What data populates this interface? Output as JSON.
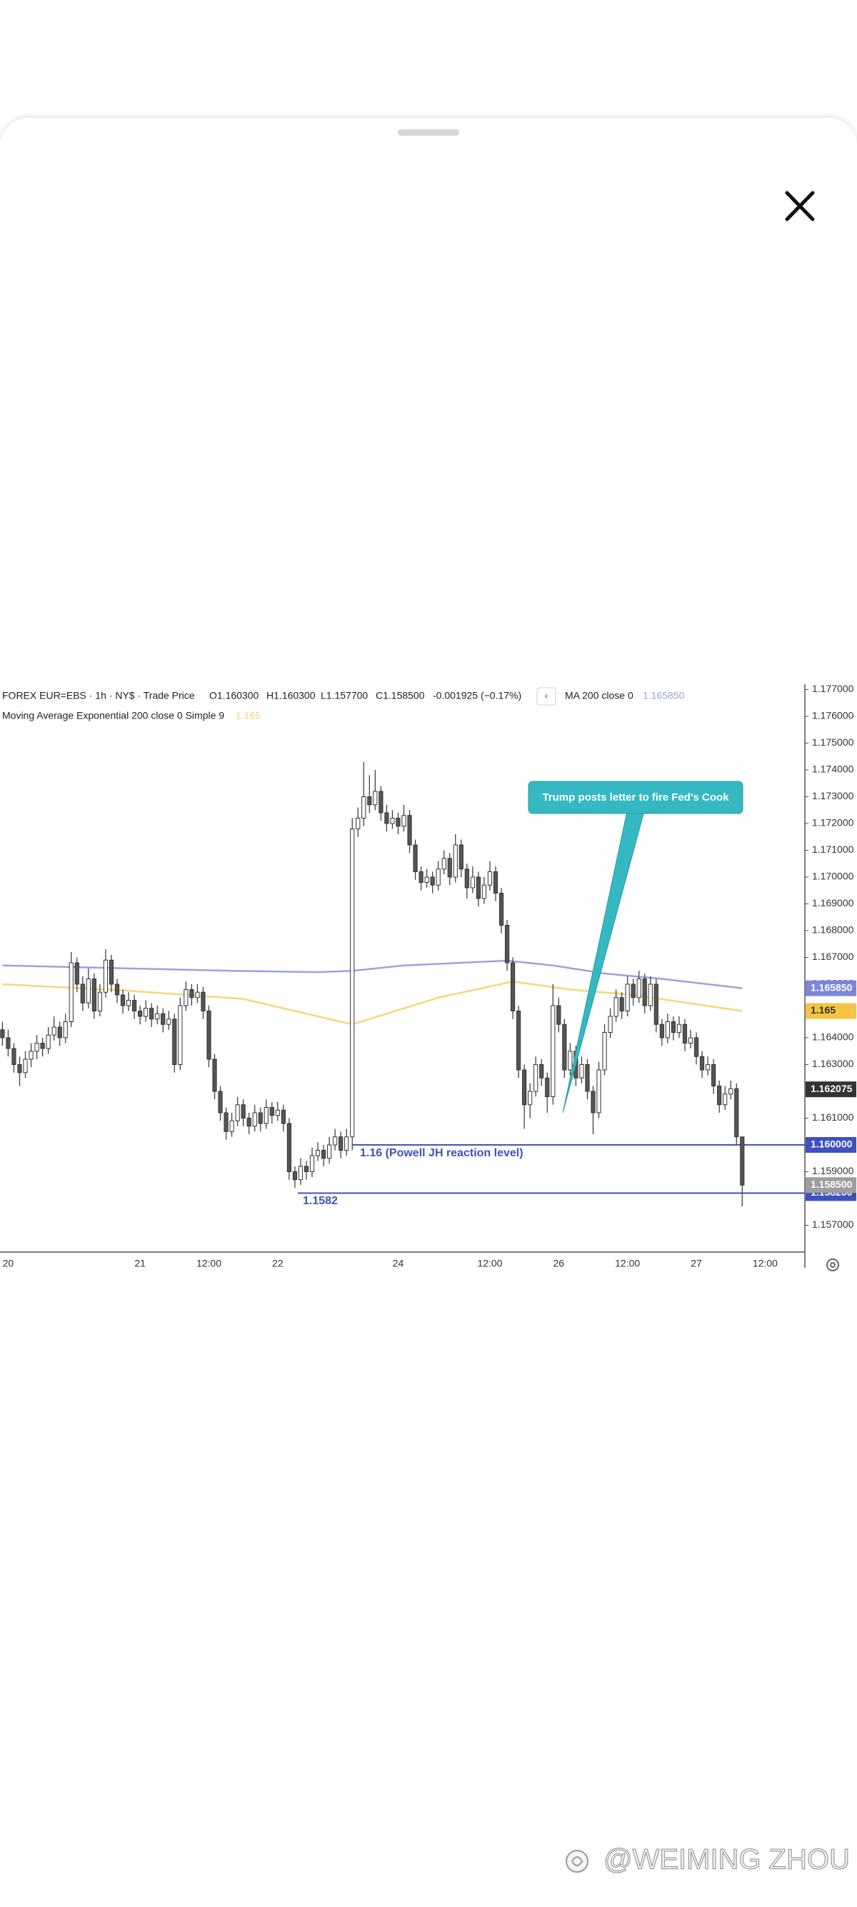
{
  "chart_data": {
    "type": "candlestick",
    "title": "FOREX EUR=EBS · 1h · NY$ · Trade Price",
    "ohlc_legend": [
      "O1.160300",
      "H1.160300",
      "L1.157700",
      "C1.158500",
      "-0.001925 (−0.17%)"
    ],
    "categories": [
      null,
      "20",
      null,
      null,
      null,
      null,
      null,
      null,
      null,
      null,
      null,
      null,
      null,
      null,
      null,
      null,
      null,
      null,
      null,
      null,
      null,
      null,
      null,
      null,
      "21",
      null,
      null,
      null,
      null,
      null,
      null,
      null,
      null,
      null,
      null,
      null,
      "12:00",
      null,
      null,
      null,
      null,
      null,
      null,
      null,
      null,
      null,
      null,
      null,
      "22",
      null,
      null,
      null,
      null,
      null,
      null,
      null,
      null,
      null,
      null,
      null,
      null,
      null,
      null,
      null,
      null,
      null,
      null,
      null,
      null,
      "24",
      null,
      null,
      null,
      null,
      null,
      null,
      null,
      null,
      null,
      null,
      null,
      null,
      null,
      null,
      null,
      "12:00",
      null,
      null,
      null,
      null,
      null,
      null,
      null,
      null,
      null,
      null,
      null,
      "26",
      null,
      null,
      null,
      null,
      null,
      null,
      null,
      null,
      null,
      null,
      null,
      "12:00",
      null,
      null,
      null,
      null,
      null,
      null,
      null,
      null,
      null,
      null,
      null,
      "27",
      null,
      null,
      null,
      null,
      null,
      null,
      null,
      null,
      null,
      null,
      null,
      "12:00",
      null
    ],
    "candles": [
      [
        1.1643,
        1.1646,
        1.1637,
        1.164
      ],
      [
        1.164,
        1.1643,
        1.1633,
        1.1636
      ],
      [
        1.1636,
        1.1638,
        1.1627,
        1.163
      ],
      [
        1.163,
        1.1633,
        1.1622,
        1.1627
      ],
      [
        1.1627,
        1.1635,
        1.1625,
        1.1632
      ],
      [
        1.1632,
        1.1638,
        1.1629,
        1.1635
      ],
      [
        1.1635,
        1.1641,
        1.1632,
        1.1638
      ],
      [
        1.1638,
        1.164,
        1.1633,
        1.1636
      ],
      [
        1.1636,
        1.1644,
        1.1634,
        1.1641
      ],
      [
        1.1641,
        1.1648,
        1.1639,
        1.1644
      ],
      [
        1.1644,
        1.1646,
        1.1637,
        1.164
      ],
      [
        1.164,
        1.1649,
        1.1638,
        1.1646
      ],
      [
        1.1646,
        1.1672,
        1.1644,
        1.1668
      ],
      [
        1.1668,
        1.167,
        1.1657,
        1.166
      ],
      [
        1.166,
        1.1663,
        1.165,
        1.1653
      ],
      [
        1.1653,
        1.1666,
        1.1651,
        1.1662
      ],
      [
        1.1662,
        1.1664,
        1.1647,
        1.165
      ],
      [
        1.165,
        1.166,
        1.1648,
        1.1657
      ],
      [
        1.1657,
        1.1673,
        1.1655,
        1.1669
      ],
      [
        1.1669,
        1.1671,
        1.1657,
        1.166
      ],
      [
        1.166,
        1.1662,
        1.1653,
        1.1656
      ],
      [
        1.1656,
        1.1658,
        1.1649,
        1.1652
      ],
      [
        1.1652,
        1.1657,
        1.165,
        1.1654
      ],
      [
        1.1654,
        1.1656,
        1.1647,
        1.165
      ],
      [
        1.165,
        1.1652,
        1.1645,
        1.1648
      ],
      [
        1.1648,
        1.1654,
        1.1646,
        1.1651
      ],
      [
        1.1651,
        1.1653,
        1.1644,
        1.1647
      ],
      [
        1.1647,
        1.1652,
        1.1645,
        1.1649
      ],
      [
        1.1649,
        1.1651,
        1.1642,
        1.1645
      ],
      [
        1.1645,
        1.165,
        1.1643,
        1.1647
      ],
      [
        1.1647,
        1.1649,
        1.1627,
        1.163
      ],
      [
        1.163,
        1.1655,
        1.1628,
        1.1652
      ],
      [
        1.1652,
        1.1661,
        1.165,
        1.1658
      ],
      [
        1.1658,
        1.166,
        1.1652,
        1.1655
      ],
      [
        1.1655,
        1.166,
        1.1653,
        1.1657
      ],
      [
        1.1657,
        1.1659,
        1.1647,
        1.165
      ],
      [
        1.165,
        1.1652,
        1.1629,
        1.1632
      ],
      [
        1.1632,
        1.1634,
        1.1617,
        1.162
      ],
      [
        1.162,
        1.1622,
        1.1609,
        1.1612
      ],
      [
        1.1612,
        1.1614,
        1.1602,
        1.1605
      ],
      [
        1.1605,
        1.1612,
        1.1603,
        1.1609
      ],
      [
        1.1609,
        1.1618,
        1.1607,
        1.1615
      ],
      [
        1.1615,
        1.1617,
        1.1607,
        1.161
      ],
      [
        1.161,
        1.1612,
        1.1604,
        1.1607
      ],
      [
        1.1607,
        1.1615,
        1.1605,
        1.1612
      ],
      [
        1.1612,
        1.1614,
        1.1605,
        1.1608
      ],
      [
        1.1608,
        1.1617,
        1.1606,
        1.1614
      ],
      [
        1.1614,
        1.1616,
        1.1608,
        1.1611
      ],
      [
        1.1611,
        1.1616,
        1.1609,
        1.1613
      ],
      [
        1.1613,
        1.1615,
        1.1605,
        1.1608
      ],
      [
        1.1608,
        1.161,
        1.1587,
        1.159
      ],
      [
        1.159,
        1.1592,
        1.1584,
        1.1587
      ],
      [
        1.1587,
        1.1595,
        1.1585,
        1.1592
      ],
      [
        1.1592,
        1.1594,
        1.1587,
        1.159
      ],
      [
        1.159,
        1.1599,
        1.1588,
        1.1596
      ],
      [
        1.1596,
        1.1601,
        1.1594,
        1.1598
      ],
      [
        1.1598,
        1.16,
        1.1592,
        1.1595
      ],
      [
        1.1595,
        1.1603,
        1.1593,
        1.16
      ],
      [
        1.16,
        1.1606,
        1.1598,
        1.1603
      ],
      [
        1.1603,
        1.1605,
        1.1595,
        1.1598
      ],
      [
        1.1598,
        1.1606,
        1.1596,
        1.1603
      ],
      [
        1.1603,
        1.1722,
        1.1598,
        1.1718
      ],
      [
        1.1718,
        1.1726,
        1.1715,
        1.1722
      ],
      [
        1.1722,
        1.1743,
        1.1719,
        1.173
      ],
      [
        1.173,
        1.1738,
        1.1724,
        1.1727
      ],
      [
        1.1727,
        1.174,
        1.1725,
        1.1732
      ],
      [
        1.1732,
        1.1734,
        1.1721,
        1.1724
      ],
      [
        1.1724,
        1.1727,
        1.1717,
        1.172
      ],
      [
        1.172,
        1.1725,
        1.1718,
        1.1722
      ],
      [
        1.1722,
        1.1724,
        1.1716,
        1.1719
      ],
      [
        1.1719,
        1.1727,
        1.1717,
        1.1723
      ],
      [
        1.1723,
        1.1725,
        1.1709,
        1.1712
      ],
      [
        1.1712,
        1.1714,
        1.1699,
        1.1702
      ],
      [
        1.1702,
        1.1704,
        1.1695,
        1.1698
      ],
      [
        1.1698,
        1.1703,
        1.1696,
        1.17
      ],
      [
        1.17,
        1.1702,
        1.1694,
        1.1697
      ],
      [
        1.1697,
        1.1706,
        1.1695,
        1.1703
      ],
      [
        1.1703,
        1.171,
        1.1701,
        1.1707
      ],
      [
        1.1707,
        1.1709,
        1.1697,
        1.17
      ],
      [
        1.17,
        1.1716,
        1.1698,
        1.1712
      ],
      [
        1.1712,
        1.1714,
        1.17,
        1.1703
      ],
      [
        1.1703,
        1.1705,
        1.1692,
        1.1696
      ],
      [
        1.1696,
        1.1704,
        1.1694,
        1.17
      ],
      [
        1.17,
        1.1702,
        1.1689,
        1.1692
      ],
      [
        1.1692,
        1.17,
        1.169,
        1.1697
      ],
      [
        1.1697,
        1.1706,
        1.1695,
        1.1702
      ],
      [
        1.1702,
        1.1704,
        1.1691,
        1.1694
      ],
      [
        1.1694,
        1.1696,
        1.1679,
        1.1682
      ],
      [
        1.1682,
        1.1684,
        1.1665,
        1.1668
      ],
      [
        1.1668,
        1.167,
        1.1647,
        1.165
      ],
      [
        1.165,
        1.1652,
        1.1625,
        1.1628
      ],
      [
        1.1628,
        1.163,
        1.1606,
        1.1615
      ],
      [
        1.1615,
        1.1623,
        1.161,
        1.162
      ],
      [
        1.162,
        1.1633,
        1.1618,
        1.163
      ],
      [
        1.163,
        1.1632,
        1.1622,
        1.1625
      ],
      [
        1.1625,
        1.1627,
        1.1612,
        1.1618
      ],
      [
        1.1618,
        1.166,
        1.1615,
        1.1652
      ],
      [
        1.1652,
        1.1655,
        1.1642,
        1.1645
      ],
      [
        1.1645,
        1.1647,
        1.1625,
        1.1628
      ],
      [
        1.1628,
        1.1638,
        1.1626,
        1.1635
      ],
      [
        1.1635,
        1.1637,
        1.1622,
        1.1625
      ],
      [
        1.1625,
        1.1633,
        1.1623,
        1.163
      ],
      [
        1.163,
        1.1632,
        1.1617,
        1.162
      ],
      [
        1.162,
        1.1622,
        1.1604,
        1.1612
      ],
      [
        1.1612,
        1.1631,
        1.161,
        1.1628
      ],
      [
        1.1628,
        1.1645,
        1.1626,
        1.1642
      ],
      [
        1.1642,
        1.1651,
        1.164,
        1.1648
      ],
      [
        1.1648,
        1.1658,
        1.1646,
        1.1655
      ],
      [
        1.1655,
        1.1657,
        1.1647,
        1.165
      ],
      [
        1.165,
        1.1663,
        1.1648,
        1.166
      ],
      [
        1.166,
        1.1662,
        1.1652,
        1.1655
      ],
      [
        1.1655,
        1.1665,
        1.1653,
        1.1662
      ],
      [
        1.1662,
        1.1664,
        1.1649,
        1.1652
      ],
      [
        1.1652,
        1.1663,
        1.165,
        1.166
      ],
      [
        1.166,
        1.1662,
        1.1642,
        1.1645
      ],
      [
        1.1645,
        1.1647,
        1.1637,
        1.164
      ],
      [
        1.164,
        1.1649,
        1.1638,
        1.1646
      ],
      [
        1.1646,
        1.1648,
        1.1639,
        1.1642
      ],
      [
        1.1642,
        1.1648,
        1.164,
        1.1645
      ],
      [
        1.1645,
        1.1647,
        1.1635,
        1.1638
      ],
      [
        1.1638,
        1.1643,
        1.1636,
        1.164
      ],
      [
        1.164,
        1.1642,
        1.163,
        1.1633
      ],
      [
        1.1633,
        1.1635,
        1.1625,
        1.1628
      ],
      [
        1.1628,
        1.1633,
        1.1626,
        1.163
      ],
      [
        1.163,
        1.1632,
        1.1619,
        1.1622
      ],
      [
        1.1622,
        1.1624,
        1.1612,
        1.1615
      ],
      [
        1.1615,
        1.1622,
        1.1613,
        1.1619
      ],
      [
        1.1619,
        1.1624,
        1.1617,
        1.1621
      ],
      [
        1.1621,
        1.1623,
        1.16,
        1.1603
      ],
      [
        1.1603,
        1.1603,
        1.1577,
        1.1585
      ],
      null,
      null,
      null,
      null,
      null
    ],
    "up_color": "#ffffff",
    "down_color": "#555555",
    "edge_color": "#333333",
    "series": [
      {
        "name": "MA 200 close 0",
        "legend_value": "1.165850",
        "color": "#9aa3de",
        "x": [
          0,
          20,
          40,
          55,
          61,
          70,
          80,
          88,
          96,
          105,
          115,
          129
        ],
        "values": [
          1.1667,
          1.1666,
          1.1665,
          1.16645,
          1.1665,
          1.1667,
          1.1668,
          1.16688,
          1.1667,
          1.1664,
          1.1662,
          1.16585
        ]
      },
      {
        "name": "Moving Average Exponential 200 close 0 Simple 9",
        "legend_value": "1.165",
        "color": "#f3d77a",
        "x": [
          0,
          21,
          42,
          61,
          76,
          89,
          99,
          110,
          129
        ],
        "values": [
          1.166,
          1.16577,
          1.16545,
          1.1645,
          1.1655,
          1.1661,
          1.1658,
          1.1656,
          1.165
        ]
      }
    ],
    "ylim": [
      1.156,
      1.1772
    ],
    "yticks": [
      {
        "value": 1.177,
        "label": "1.177000"
      },
      {
        "value": 1.176,
        "label": "1.176000"
      },
      {
        "value": 1.175,
        "label": "1.175000"
      },
      {
        "value": 1.174,
        "label": "1.174000"
      },
      {
        "value": 1.173,
        "label": "1.173000"
      },
      {
        "value": 1.172,
        "label": "1.172000"
      },
      {
        "value": 1.171,
        "label": "1.171000"
      },
      {
        "value": 1.17,
        "label": "1.170000"
      },
      {
        "value": 1.169,
        "label": "1.169000"
      },
      {
        "value": 1.168,
        "label": "1.168000"
      },
      {
        "value": 1.167,
        "label": "1.167000"
      },
      {
        "value": 1.166,
        "label": "1.166000"
      },
      {
        "value": 1.165,
        "label": "1.165000"
      },
      {
        "value": 1.164,
        "label": "1.164000"
      },
      {
        "value": 1.163,
        "label": "1.163000"
      },
      {
        "value": 1.162,
        "label": "1.162000"
      },
      {
        "value": 1.161,
        "label": "1.161000"
      },
      {
        "value": 1.16,
        "label": "1.160000"
      },
      {
        "value": 1.159,
        "label": "1.159000"
      },
      {
        "value": 1.158,
        "label": "1.158000"
      },
      {
        "value": 1.157,
        "label": "1.157000"
      }
    ],
    "grid": false,
    "hlines": [
      {
        "value": 1.16,
        "label": "1.16 (Powell JH reaction level)",
        "color": "#3f51c0"
      },
      {
        "value": 1.1582,
        "label": "1.1582",
        "color": "#3f51c0"
      }
    ],
    "axis_badges": [
      {
        "value": 1.16585,
        "label": "1.165850",
        "bg": "#7b86d8",
        "fg": "#ffffff"
      },
      {
        "value": 1.165,
        "label": "1.165",
        "bg": "#f6c343",
        "fg": "#333333"
      },
      {
        "value": 1.162075,
        "label": "1.162075",
        "bg": "#333333",
        "fg": "#ffffff"
      },
      {
        "value": 1.16,
        "label": "1.160000",
        "bg": "#3f51c0",
        "fg": "#ffffff"
      },
      {
        "value": 1.1582,
        "label": "1.158200",
        "bg": "#3f51c0",
        "fg": "#ffffff"
      },
      {
        "value": 1.1585,
        "label": "1.158500",
        "bg": "#9e9e9e",
        "fg": "#ffffff"
      }
    ],
    "annotation": {
      "text": "Trump posts letter to fire Fed's Cook",
      "color": "#35b8c2"
    }
  },
  "watermark": "@WEIMING ZHOU"
}
